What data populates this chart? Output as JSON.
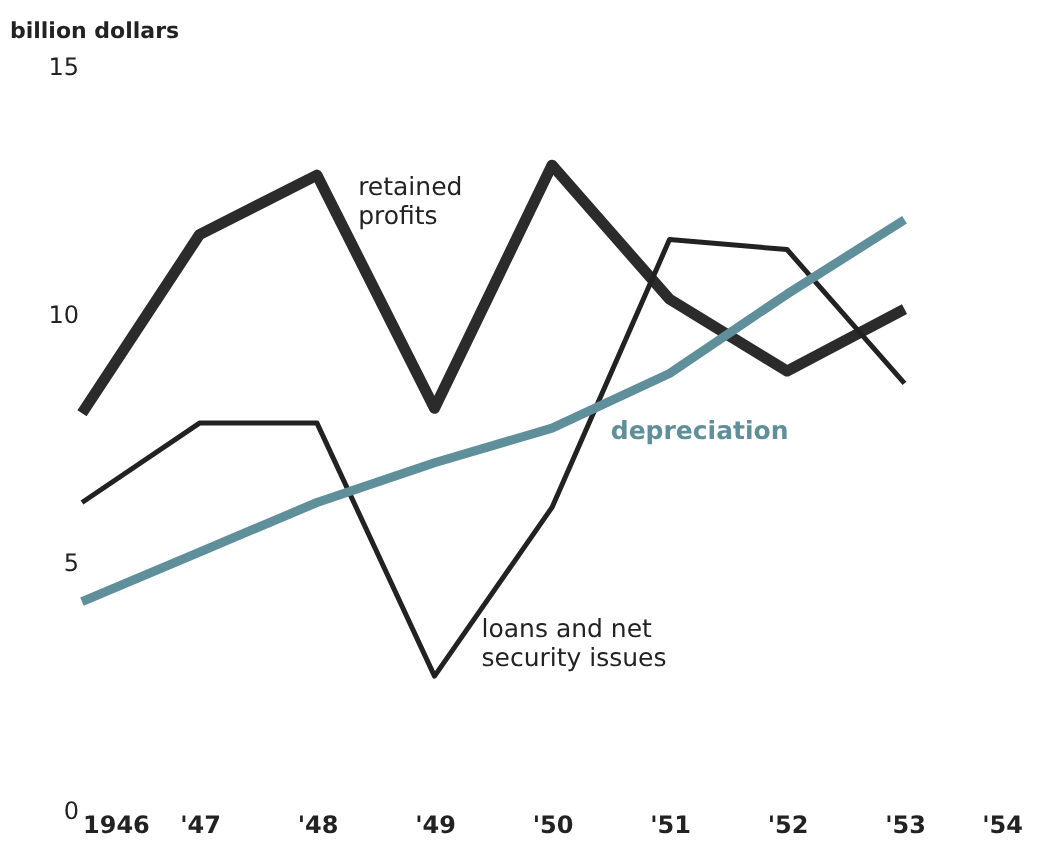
{
  "chart_data": {
    "type": "line",
    "ylabel": "billion dollars",
    "x": [
      1946,
      1947,
      1948,
      1949,
      1950,
      1951,
      1952,
      1953
    ],
    "series": [
      {
        "name": "retained profits",
        "color": "#2b2b2b",
        "values": [
          8.0,
          11.6,
          12.8,
          8.1,
          13.0,
          10.3,
          8.85,
          10.1
        ]
      },
      {
        "name": "loans and net security issues",
        "color": "#222222",
        "values": [
          6.2,
          7.8,
          7.8,
          2.7,
          6.1,
          11.5,
          11.3,
          8.6
        ]
      },
      {
        "name": "depreciation",
        "color": "#5f8f9a",
        "values": [
          4.2,
          5.2,
          6.2,
          7.0,
          7.7,
          8.8,
          10.4,
          11.9
        ]
      }
    ],
    "xlim": [
      1946,
      1954
    ],
    "ylim": [
      0,
      15
    ],
    "xticks": [
      {
        "value": 1946,
        "label": "1946"
      },
      {
        "value": 1947,
        "label": "'47"
      },
      {
        "value": 1948,
        "label": "'48"
      },
      {
        "value": 1949,
        "label": "'49"
      },
      {
        "value": 1950,
        "label": "'50"
      },
      {
        "value": 1951,
        "label": "'51"
      },
      {
        "value": 1952,
        "label": "'52"
      },
      {
        "value": 1953,
        "label": "'53"
      },
      {
        "value": 1954,
        "label": "'54"
      }
    ],
    "yticks": [
      0,
      5,
      10,
      15
    ],
    "grid": false,
    "marker": "none",
    "line_style": "solid"
  }
}
